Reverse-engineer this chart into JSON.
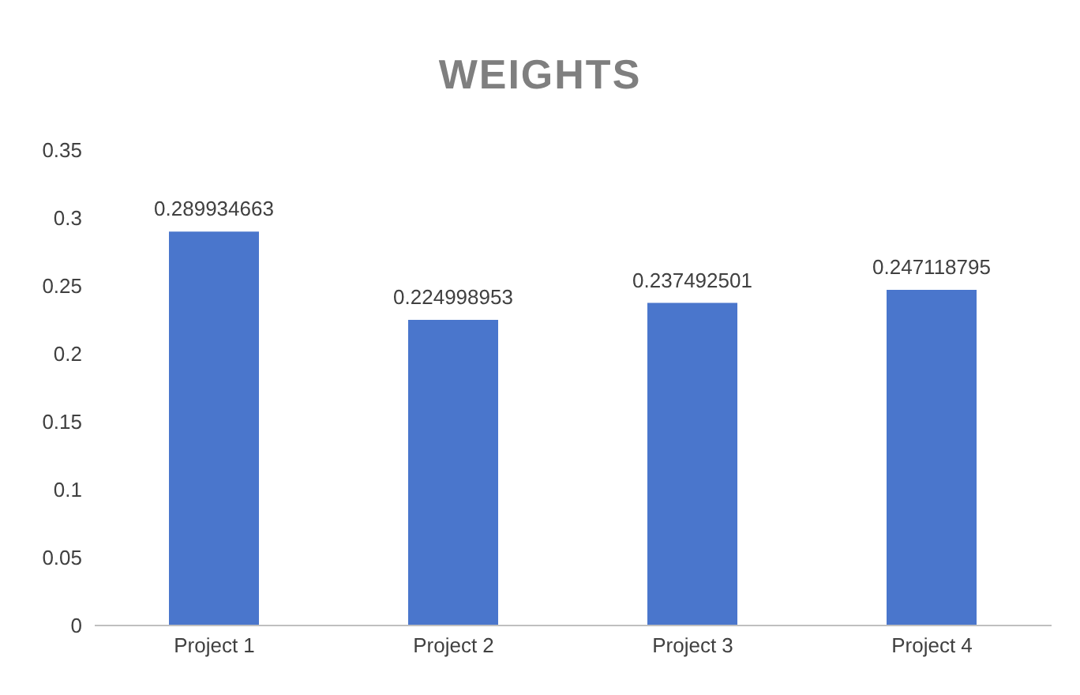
{
  "chart_data": {
    "type": "bar",
    "title": "WEIGHTS",
    "categories": [
      "Project 1",
      "Project 2",
      "Project 3",
      "Project 4"
    ],
    "values": [
      0.289934663,
      0.224998953,
      0.237492501,
      0.247118795
    ],
    "color": "#4a76cc",
    "ylim": [
      0,
      0.35
    ],
    "yticks": [
      0,
      0.05,
      0.1,
      0.15,
      0.2,
      0.25,
      0.3,
      0.35
    ],
    "grid": false,
    "data_labels": true,
    "legend": false
  }
}
